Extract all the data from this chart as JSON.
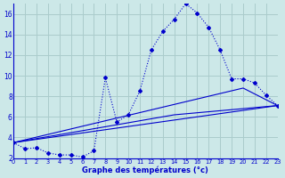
{
  "xlabel": "Graphe des températures (°c)",
  "background_color": "#cce8e8",
  "grid_color": "#aacccc",
  "line_color": "#0000cc",
  "xmin": 0,
  "xmax": 23,
  "ymin": 2,
  "ymax": 17,
  "yticks": [
    2,
    4,
    6,
    8,
    10,
    12,
    14,
    16
  ],
  "line1_x": [
    0,
    1,
    2,
    3,
    4,
    5,
    6,
    7,
    8,
    9,
    10,
    11,
    12,
    13,
    14,
    15,
    16,
    17,
    18,
    19,
    20,
    21,
    22,
    23
  ],
  "line1_y": [
    3.5,
    2.9,
    3.0,
    2.5,
    2.3,
    2.3,
    2.1,
    2.7,
    9.8,
    5.5,
    6.2,
    8.5,
    12.5,
    14.3,
    15.5,
    17.0,
    16.1,
    14.7,
    12.5,
    9.7,
    9.7,
    9.3,
    8.1,
    7.1
  ],
  "line2_x": [
    0,
    23
  ],
  "line2_y": [
    3.5,
    7.1
  ],
  "line3_x": [
    0,
    14,
    23
  ],
  "line3_y": [
    3.5,
    6.2,
    7.1
  ],
  "line4_x": [
    0,
    20,
    23
  ],
  "line4_y": [
    3.5,
    8.8,
    7.1
  ]
}
